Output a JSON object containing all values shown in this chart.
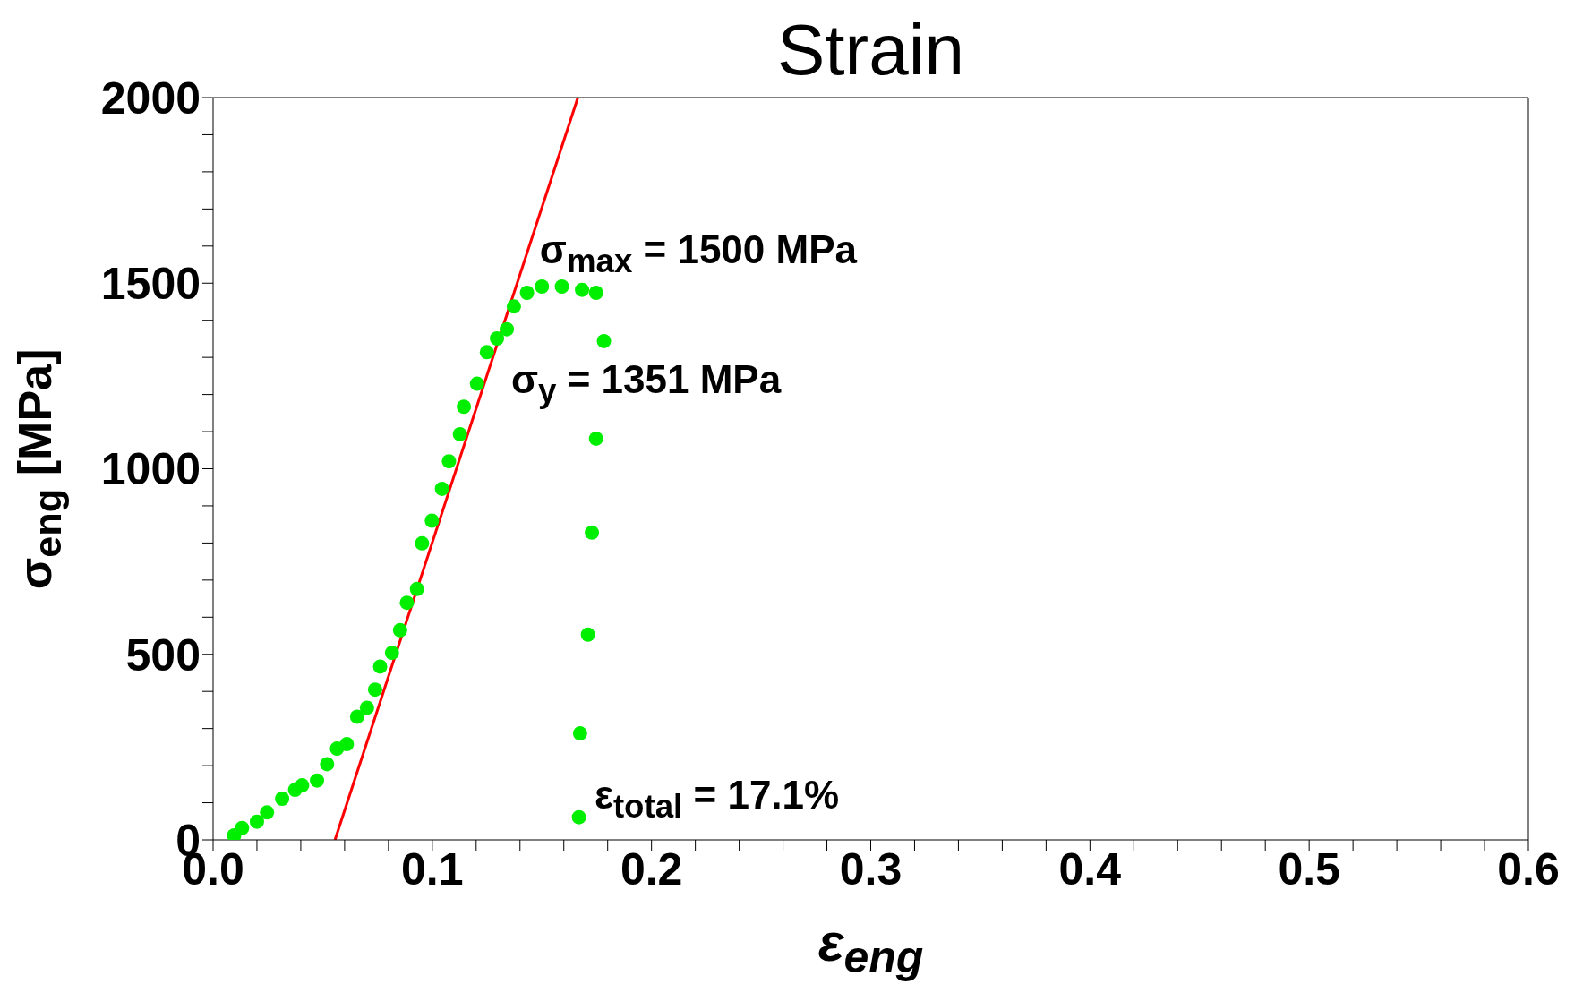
{
  "chart_data": {
    "type": "scatter",
    "title": "Strain",
    "xlabel": "ε$_{eng}$",
    "ylabel": "σ$_{eng}$  [MPa]",
    "xlim": [
      0,
      0.6
    ],
    "ylim": [
      0,
      2000
    ],
    "xticks": [
      {
        "value": 0,
        "label": "0.0"
      },
      {
        "value": 0.02,
        "label": null
      },
      {
        "value": 0.04,
        "label": null
      },
      {
        "value": 0.06,
        "label": null
      },
      {
        "value": 0.08,
        "label": null
      },
      {
        "value": 0.1,
        "label": "0.1"
      },
      {
        "value": 0.12,
        "label": null
      },
      {
        "value": 0.14,
        "label": null
      },
      {
        "value": 0.16,
        "label": null
      },
      {
        "value": 0.18,
        "label": null
      },
      {
        "value": 0.2,
        "label": "0.2"
      },
      {
        "value": 0.22,
        "label": null
      },
      {
        "value": 0.24,
        "label": null
      },
      {
        "value": 0.26,
        "label": null
      },
      {
        "value": 0.28,
        "label": null
      },
      {
        "value": 0.3,
        "label": "0.3"
      },
      {
        "value": 0.32,
        "label": null
      },
      {
        "value": 0.34,
        "label": null
      },
      {
        "value": 0.36,
        "label": null
      },
      {
        "value": 0.38,
        "label": null
      },
      {
        "value": 0.4,
        "label": "0.4"
      },
      {
        "value": 0.42,
        "label": null
      },
      {
        "value": 0.44,
        "label": null
      },
      {
        "value": 0.46,
        "label": null
      },
      {
        "value": 0.48,
        "label": null
      },
      {
        "value": 0.5,
        "label": "0.5"
      },
      {
        "value": 0.52,
        "label": null
      },
      {
        "value": 0.54,
        "label": null
      },
      {
        "value": 0.56,
        "label": null
      },
      {
        "value": 0.58,
        "label": null
      },
      {
        "value": 0.6,
        "label": "0.6"
      }
    ],
    "yticks": [
      0,
      {
        "value": 100,
        "label": null
      },
      {
        "value": 200,
        "label": null
      },
      {
        "value": 300,
        "label": null
      },
      {
        "value": 400,
        "label": null
      },
      500,
      {
        "value": 600,
        "label": null
      },
      {
        "value": 700,
        "label": null
      },
      {
        "value": 800,
        "label": null
      },
      {
        "value": 900,
        "label": null
      },
      1000,
      {
        "value": 1100,
        "label": null
      },
      {
        "value": 1200,
        "label": null
      },
      {
        "value": 1300,
        "label": null
      },
      {
        "value": 1400,
        "label": null
      },
      1500,
      {
        "value": 1600,
        "label": null
      },
      {
        "value": 1700,
        "label": null
      },
      {
        "value": 1800,
        "label": null
      },
      {
        "value": 1900,
        "label": null
      },
      2000
    ],
    "series": [
      {
        "marker": "circle",
        "color": "#00ee00",
        "x": [
          0.0096,
          0.0132,
          0.02,
          0.0246,
          0.0315,
          0.0374,
          0.0406,
          0.0474,
          0.052,
          0.0565,
          0.061,
          0.0657,
          0.0702,
          0.0739,
          0.0762,
          0.0816,
          0.0853,
          0.0884,
          0.093,
          0.0953,
          0.0998,
          0.1044,
          0.1076,
          0.1126,
          0.1144,
          0.1204,
          0.1249,
          0.1295,
          0.134,
          0.1372,
          0.1432,
          0.15,
          0.1591,
          0.1683,
          0.1747,
          0.1783,
          0.1747,
          0.1728,
          0.171,
          0.1674,
          0.1669
        ],
        "values": [
          12,
          32,
          49,
          74,
          111,
          135,
          147,
          160,
          204,
          246,
          258,
          332,
          356,
          405,
          467,
          504,
          565,
          639,
          676,
          799,
          860,
          946,
          1020,
          1093,
          1167,
          1229,
          1314,
          1351,
          1376,
          1437,
          1474,
          1491,
          1491,
          1482,
          1474,
          1344,
          1081,
          828,
          553,
          287,
          61
        ]
      },
      {
        "type": "line",
        "marker": "none",
        "color": "#ff0000",
        "x": [
          0.0556,
          0.1664
        ],
        "values": [
          0,
          2000
        ]
      }
    ],
    "annotations": [
      "σ$_{max}$ = 1500 MPa",
      "σ$_{y}$ = 1351 MPa",
      "ε$_{total}$ =  17.1%"
    ]
  }
}
